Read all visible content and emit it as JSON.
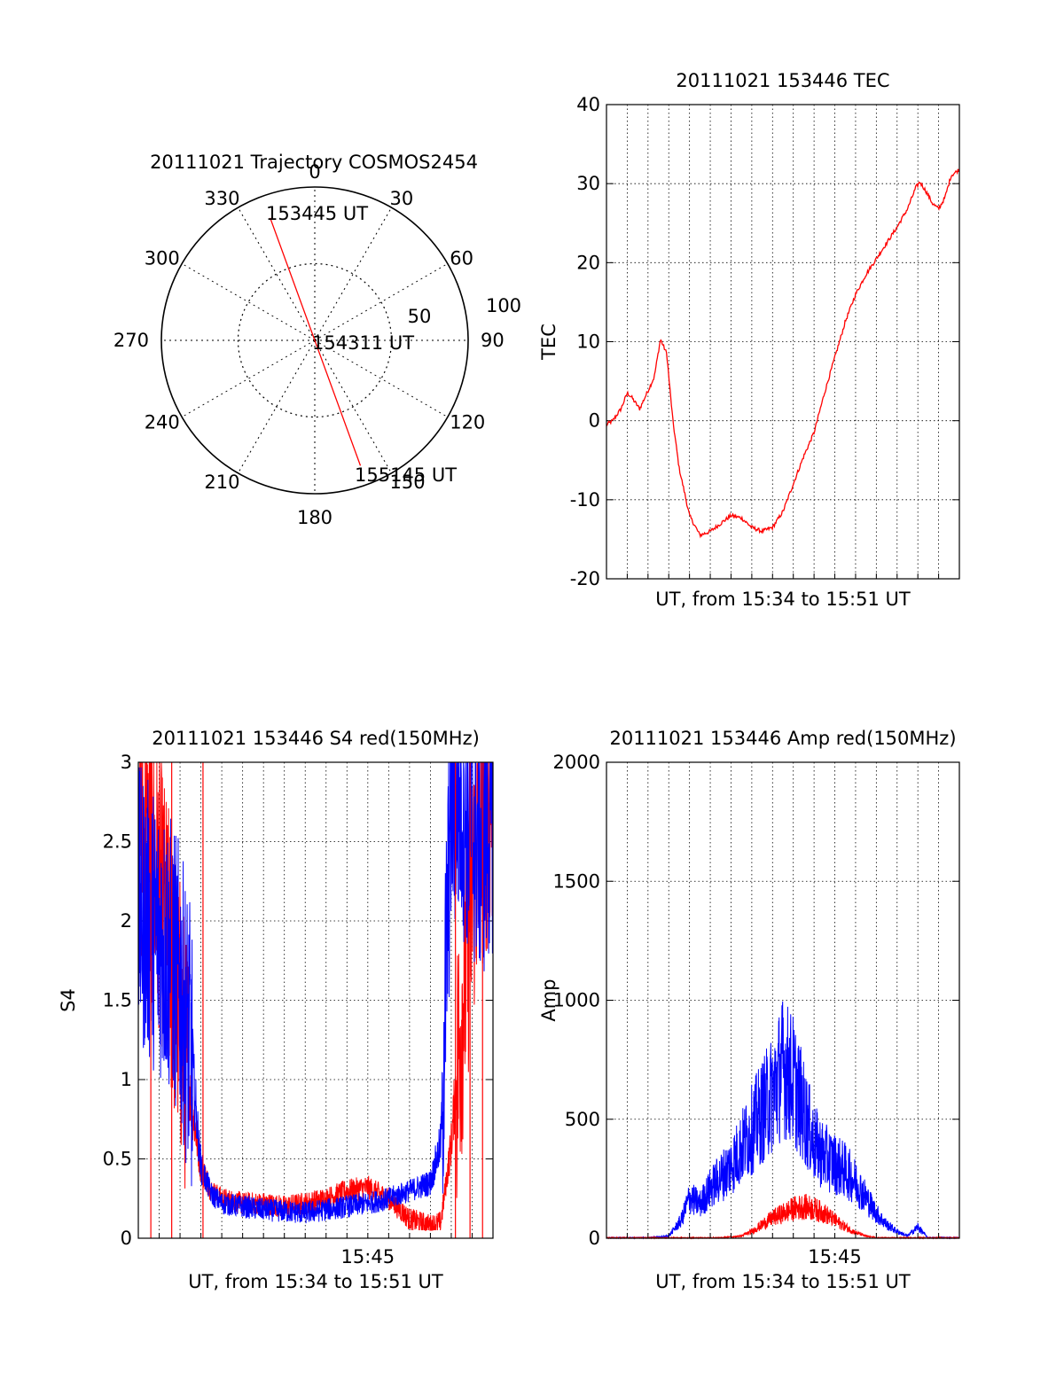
{
  "chart_data": [
    {
      "id": "trajectory",
      "type": "polar",
      "title": "20111021 Trajectory COSMOS2454",
      "azimuth_labels": [
        "0",
        "30",
        "60",
        "90",
        "120",
        "150",
        "180",
        "210",
        "240",
        "270",
        "300",
        "330"
      ],
      "radius_labels": [
        "50",
        "100"
      ],
      "rmax": 100,
      "track": [
        {
          "az": 340,
          "r": 85
        },
        {
          "az": 0,
          "r": 0
        },
        {
          "az": 160,
          "r": 87
        }
      ],
      "annotations": [
        "153445 UT",
        "154311 UT",
        "155145 UT"
      ],
      "color": "#ff0000"
    },
    {
      "id": "tec",
      "type": "line",
      "title": "20111021 153446 TEC",
      "xlabel": "UT, from 15:34 to 15:51 UT",
      "ylabel": "TEC",
      "xlim": [
        15.5667,
        15.85
      ],
      "ylim": [
        -20,
        40
      ],
      "yticks": [
        "-20",
        "-10",
        "0",
        "10",
        "20",
        "30",
        "40"
      ],
      "grid": true,
      "series": [
        {
          "color": "#ff0000",
          "x_minutes_from_1534": [
            0.0,
            0.3,
            0.7,
            1.0,
            1.2,
            1.6,
            2.0,
            2.3,
            2.6,
            2.9,
            3.2,
            3.5,
            4.0,
            4.5,
            5.0,
            5.5,
            6.0,
            6.5,
            7.0,
            7.5,
            8.0,
            8.5,
            9.0,
            9.5,
            10.0,
            10.5,
            11.0,
            11.5,
            12.0,
            12.5,
            13.0,
            13.5,
            14.0,
            14.5,
            14.9,
            15.1,
            15.4,
            15.7,
            16.0,
            16.3,
            16.6,
            17.0
          ],
          "y": [
            -0.5,
            0.0,
            1.5,
            3.5,
            3.0,
            1.5,
            3.8,
            5.5,
            10.3,
            8.5,
            0.0,
            -6.0,
            -12.0,
            -14.5,
            -14.0,
            -13.0,
            -12.0,
            -12.3,
            -13.5,
            -14.0,
            -13.5,
            -11.5,
            -8.0,
            -4.5,
            -1.5,
            3.5,
            8.0,
            12.5,
            16.0,
            18.5,
            20.5,
            22.5,
            24.5,
            26.8,
            29.5,
            30.2,
            29.0,
            27.5,
            26.8,
            28.2,
            31.0,
            31.8
          ]
        }
      ]
    },
    {
      "id": "s4",
      "type": "line",
      "title": "20111021 153446 S4 red(150MHz)",
      "xlabel": "UT, from 15:34 to 15:51 UT",
      "ylabel": "S4",
      "ylim": [
        0,
        3
      ],
      "yticks": [
        "0",
        "0.5",
        "1",
        "1.5",
        "2",
        "2.5",
        "3"
      ],
      "xticks": [
        "15:45"
      ],
      "grid": true,
      "series": [
        {
          "color": "#ff0000",
          "x_minutes_from_1534": [
            0.0,
            0.5,
            1.0,
            1.5,
            2.0,
            2.5,
            3.0,
            3.5,
            4.0,
            5.0,
            6.0,
            7.0,
            8.0,
            9.0,
            10.0,
            11.0,
            12.0,
            13.0,
            14.0,
            14.5,
            15.0,
            15.5,
            16.0,
            16.5,
            17.0
          ],
          "y": [
            2.6,
            2.4,
            2.2,
            1.8,
            1.4,
            0.9,
            0.45,
            0.3,
            0.25,
            0.22,
            0.22,
            0.2,
            0.22,
            0.25,
            0.3,
            0.32,
            0.25,
            0.12,
            0.08,
            0.1,
            0.6,
            1.4,
            2.2,
            2.6,
            2.8
          ]
        },
        {
          "color": "#0000ff",
          "x_minutes_from_1534": [
            0.0,
            0.5,
            1.0,
            1.5,
            2.0,
            2.5,
            3.0,
            3.5,
            4.0,
            5.0,
            6.0,
            7.0,
            8.0,
            9.0,
            10.0,
            11.0,
            12.0,
            13.0,
            14.0,
            14.5,
            15.0,
            15.5,
            16.0,
            16.5,
            17.0
          ],
          "y": [
            2.1,
            2.0,
            1.9,
            1.8,
            1.6,
            1.2,
            0.45,
            0.28,
            0.22,
            0.2,
            0.18,
            0.17,
            0.16,
            0.18,
            0.2,
            0.22,
            0.25,
            0.3,
            0.35,
            0.6,
            2.8,
            2.8,
            2.6,
            2.5,
            2.7
          ]
        }
      ]
    },
    {
      "id": "amp",
      "type": "line",
      "title": "20111021 153446 Amp red(150MHz)",
      "xlabel": "UT, from 15:34 to 15:51 UT",
      "ylabel": "Amp",
      "ylim": [
        0,
        2000
      ],
      "yticks": [
        "0",
        "500",
        "1000",
        "1500",
        "2000"
      ],
      "xticks": [
        "15:45"
      ],
      "grid": true,
      "series": [
        {
          "color": "#0000ff",
          "x_minutes_from_1534": [
            0.0,
            2.0,
            3.0,
            3.6,
            4.0,
            4.5,
            5.0,
            5.5,
            6.0,
            6.5,
            7.0,
            7.5,
            8.0,
            8.5,
            9.0,
            9.5,
            10.0,
            10.5,
            11.0,
            11.5,
            12.0,
            12.5,
            13.0,
            13.5,
            14.0,
            14.5,
            15.0,
            15.5,
            17.0
          ],
          "y": [
            0,
            0,
            10,
            80,
            180,
            150,
            220,
            270,
            320,
            400,
            480,
            560,
            640,
            760,
            700,
            560,
            420,
            360,
            330,
            300,
            250,
            180,
            110,
            60,
            30,
            10,
            50,
            0,
            0
          ]
        },
        {
          "color": "#ff0000",
          "x_minutes_from_1534": [
            0.0,
            5.5,
            6.5,
            7.0,
            7.5,
            8.0,
            8.5,
            9.0,
            9.5,
            10.0,
            10.5,
            11.0,
            11.5,
            12.0,
            12.5,
            13.0,
            17.0
          ],
          "y": [
            0,
            0,
            10,
            30,
            60,
            90,
            110,
            130,
            140,
            130,
            110,
            80,
            50,
            25,
            10,
            0,
            0
          ]
        }
      ]
    }
  ]
}
